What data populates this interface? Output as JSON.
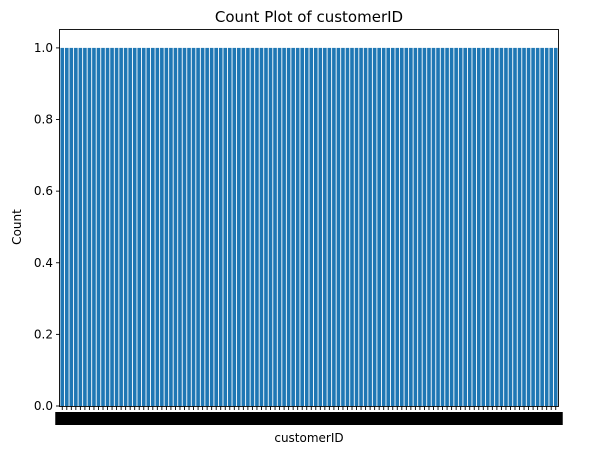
{
  "chart_data": {
    "type": "bar",
    "title": "Count Plot of customerID",
    "xlabel": "customerID",
    "ylabel": "Count",
    "category_count": 110,
    "values_all": 1.0,
    "ylim": [
      0,
      1.05
    ],
    "yticks": [
      "0.0",
      "0.2",
      "0.4",
      "0.6",
      "0.8",
      "1.0"
    ],
    "ytick_values": [
      0.0,
      0.2,
      0.4,
      0.6,
      0.8,
      1.0
    ],
    "bar_color": "#1f77b4",
    "grid": false,
    "legend": "none"
  }
}
